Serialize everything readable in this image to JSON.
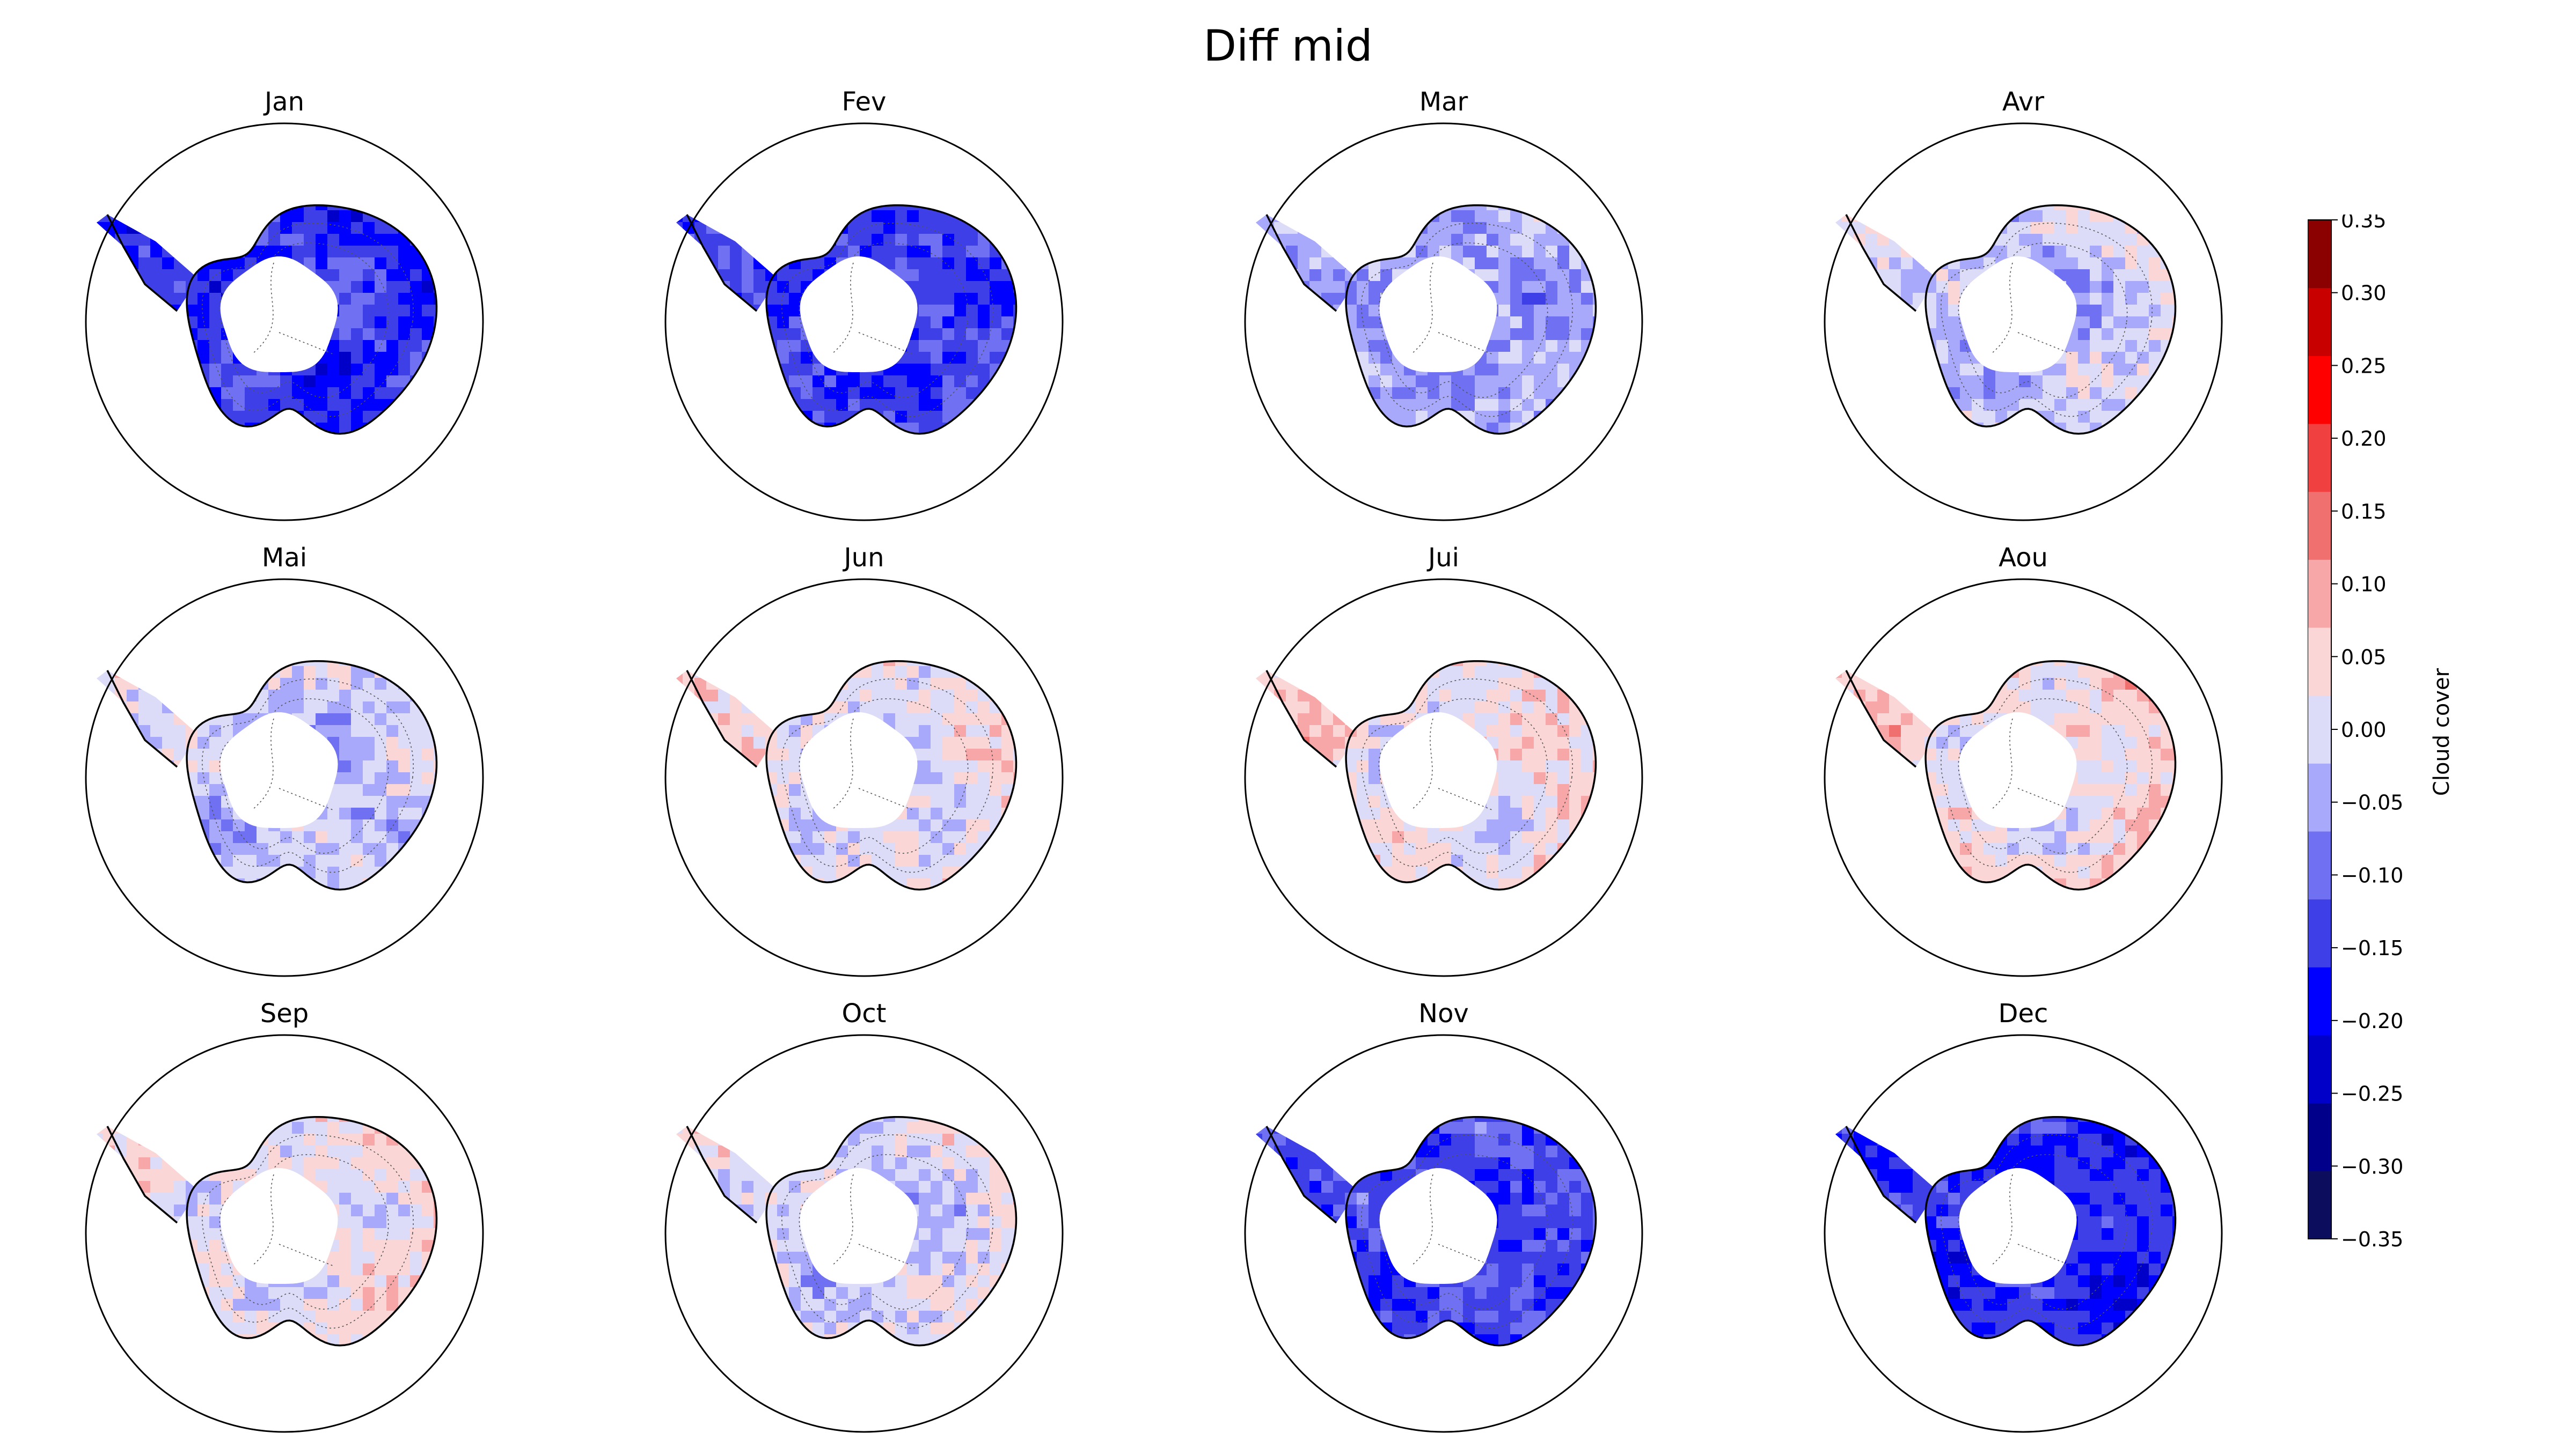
{
  "figure": {
    "title": "Diff mid"
  },
  "colorbar": {
    "label": "Cloud cover",
    "range": [
      -0.35,
      0.35
    ],
    "ticks": [
      "0.35",
      "0.30",
      "0.25",
      "0.20",
      "0.15",
      "0.10",
      "0.05",
      "0.00",
      "−0.05",
      "−0.10",
      "−0.15",
      "−0.20",
      "−0.25",
      "−0.30",
      "−0.35"
    ],
    "colors": [
      "#0d0d5e",
      "#00008b",
      "#0000c8",
      "#0000ff",
      "#3f3fe8",
      "#7070f2",
      "#a9a9fb",
      "#dcdcf9",
      "#fbd6d6",
      "#f7a7a7",
      "#f07070",
      "#f04040",
      "#ff0000",
      "#c80000",
      "#8b0000"
    ]
  },
  "panels": [
    {
      "title": "Jan",
      "mean_change": -0.15,
      "coastal_change": -0.12
    },
    {
      "title": "Fev",
      "mean_change": -0.14,
      "coastal_change": -0.1
    },
    {
      "title": "Mar",
      "mean_change": -0.05,
      "coastal_change": -0.03
    },
    {
      "title": "Avr",
      "mean_change": -0.03,
      "coastal_change": 0.02
    },
    {
      "title": "Mai",
      "mean_change": -0.03,
      "coastal_change": 0.02
    },
    {
      "title": "Jun",
      "mean_change": -0.01,
      "coastal_change": 0.06
    },
    {
      "title": "Jui",
      "mean_change": 0.01,
      "coastal_change": 0.07
    },
    {
      "title": "Aou",
      "mean_change": 0.02,
      "coastal_change": 0.08
    },
    {
      "title": "Sep",
      "mean_change": 0.01,
      "coastal_change": 0.06
    },
    {
      "title": "Oct",
      "mean_change": -0.02,
      "coastal_change": 0.04
    },
    {
      "title": "Nov",
      "mean_change": -0.14,
      "coastal_change": -0.1
    },
    {
      "title": "Dec",
      "mean_change": -0.17,
      "coastal_change": -0.12
    }
  ]
}
